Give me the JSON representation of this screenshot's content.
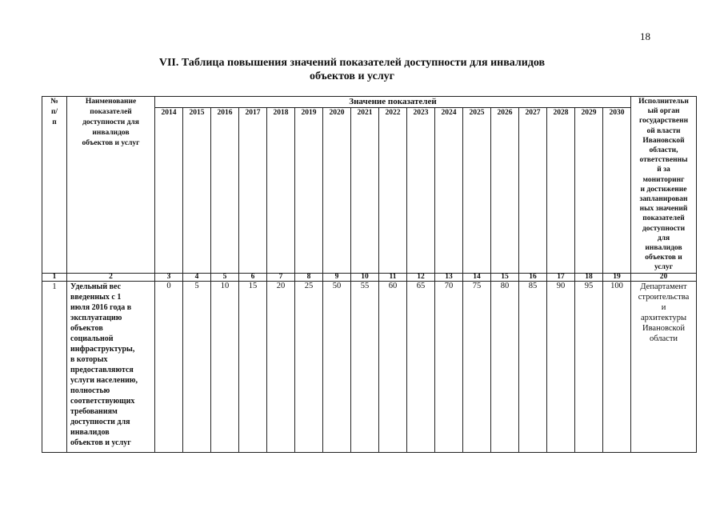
{
  "page_number": "18",
  "title": {
    "line1": "VII. Таблица повышения значений показателей доступности для инвалидов",
    "line2": "объектов и услуг"
  },
  "table": {
    "headers": {
      "num": "№\nп/\nп",
      "name": "Наименование\nпоказателей\nдоступности для\nинвалидов\nобъектов и услуг",
      "values_group": "Значение показателей",
      "years": [
        "2014",
        "2015",
        "2016",
        "2017",
        "2018",
        "2019",
        "2020",
        "2021",
        "2022",
        "2023",
        "2024",
        "2025",
        "2026",
        "2027",
        "2028",
        "2029",
        "2030"
      ],
      "org": "Исполнительн\nый орган\nгосударственн\nой власти\nИвановской\nобласти,\nответственны\nй за\nмониторинг\nи достижение\nзапланирован\nных значений\nпоказателей\nдоступности\nдля\nинвалидов\nобъектов и\nуслуг"
    },
    "column_numbers": [
      "1",
      "2",
      "3",
      "4",
      "5",
      "6",
      "7",
      "8",
      "9",
      "10",
      "11",
      "12",
      "13",
      "14",
      "15",
      "16",
      "17",
      "18",
      "19",
      "20"
    ],
    "rows": [
      {
        "num": "1",
        "name": "Удельный вес\nвведенных с 1\nиюля 2016 года в\nэксплуатацию\nобъектов\nсоциальной\nинфраструктуры,\nв которых\nпредоставляются\nуслуги населению,\nполностью\nсоответствующих\nтребованиям\nдоступности для\nинвалидов\nобъектов и услуг",
        "values": [
          "0",
          "5",
          "10",
          "15",
          "20",
          "25",
          "50",
          "55",
          "60",
          "65",
          "70",
          "75",
          "80",
          "85",
          "90",
          "95",
          "100"
        ],
        "org": "Департамент\nстроительства\nи\nархитектуры\nИвановской\nобласти"
      }
    ]
  }
}
